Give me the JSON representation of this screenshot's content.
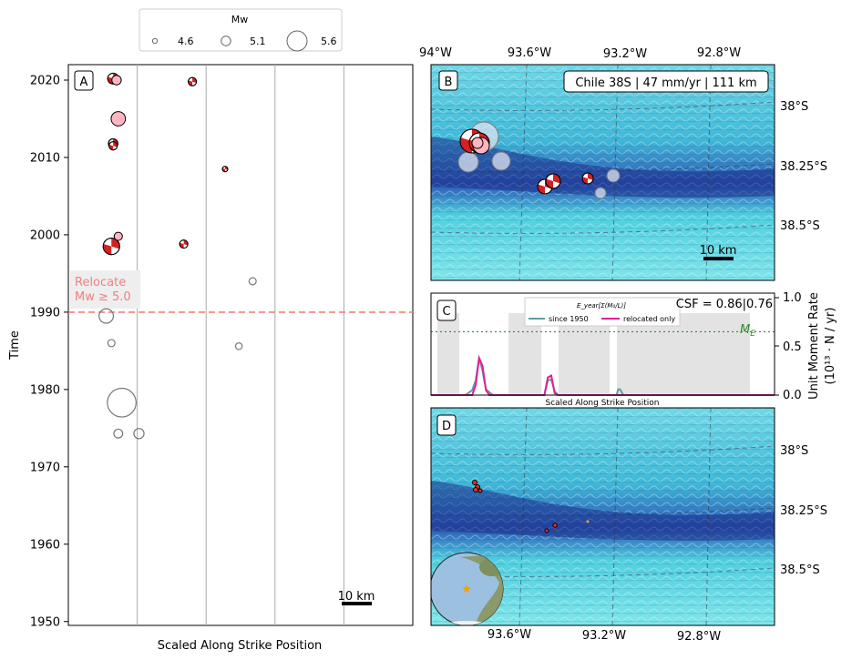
{
  "legend": {
    "title": "Mw",
    "entries": [
      "4.6",
      "5.1",
      "5.6"
    ]
  },
  "panels": {
    "A": "A",
    "B": "B",
    "C": "C",
    "D": "D"
  },
  "map_b": {
    "title_box": "Chile 38S | 47 mm/yr | 111 km",
    "lon_labels": [
      "94°W",
      "93.6°W",
      "93.2°W",
      "92.8°W"
    ],
    "lat_labels": [
      "38°S",
      "38.25°S",
      "38.5°S"
    ],
    "scalebar": "10 km"
  },
  "map_d": {
    "lon_labels": [
      "93.6°W",
      "93.2°W",
      "92.8°W"
    ],
    "lat_labels": [
      "38°S",
      "38.25°S",
      "38.5°S"
    ]
  },
  "panel_c": {
    "csf": "CSF = 0.86|0.76",
    "legend_title": "E_year[Σ(M₀/L)]",
    "series_since": "since 1950",
    "series_relocated": "relocated only",
    "me_label": "M_E",
    "xlabel": "Scaled Along Strike Position",
    "ylabel_line1": "Unit Moment Rate",
    "ylabel_line2": "(10¹³ · N / yr)",
    "yticks": [
      "0.0",
      "0.5",
      "1.0"
    ]
  },
  "panel_a": {
    "relocate_label_1": "Relocate",
    "relocate_label_2": "Mw ≥ 5.0",
    "scalebar": "10 km"
  },
  "chart_data": {
    "type": "scatter",
    "xlabel": "Scaled Along Strike Position",
    "ylabel": "Time",
    "ylim": [
      1949.5,
      2022
    ],
    "yticks": [
      "1950",
      "1960",
      "1970",
      "1980",
      "1990",
      "2000",
      "2010",
      "2020"
    ],
    "relocation_threshold_year": 1990,
    "events": [
      {
        "x": 0.13,
        "year": 2020.2,
        "mw": 5.2,
        "kind": "mech"
      },
      {
        "x": 0.14,
        "year": 2020.0,
        "mw": 5.1,
        "kind": "pink"
      },
      {
        "x": 0.145,
        "year": 2015.0,
        "mw": 5.4,
        "kind": "pink"
      },
      {
        "x": 0.13,
        "year": 2011.8,
        "mw": 5.1,
        "kind": "mech"
      },
      {
        "x": 0.13,
        "year": 2011.5,
        "mw": 5.0,
        "kind": "mech"
      },
      {
        "x": 0.36,
        "year": 2019.8,
        "mw": 5.0,
        "kind": "mech"
      },
      {
        "x": 0.455,
        "year": 2008.5,
        "mw": 4.7,
        "kind": "mech"
      },
      {
        "x": 0.125,
        "year": 1998.5,
        "mw": 5.5,
        "kind": "mech"
      },
      {
        "x": 0.145,
        "year": 1999.8,
        "mw": 5.0,
        "kind": "pink"
      },
      {
        "x": 0.335,
        "year": 1998.8,
        "mw": 5.0,
        "kind": "mech"
      },
      {
        "x": 0.535,
        "year": 1994.0,
        "mw": 4.9,
        "kind": "open"
      },
      {
        "x": 0.11,
        "year": 1989.5,
        "mw": 5.4,
        "kind": "open"
      },
      {
        "x": 0.125,
        "year": 1986.0,
        "mw": 4.9,
        "kind": "open"
      },
      {
        "x": 0.495,
        "year": 1985.6,
        "mw": 4.85,
        "kind": "open"
      },
      {
        "x": 0.155,
        "year": 1978.3,
        "mw": 5.9,
        "kind": "open"
      },
      {
        "x": 0.145,
        "year": 1974.3,
        "mw": 5.05,
        "kind": "open"
      },
      {
        "x": 0.205,
        "year": 1974.3,
        "mw": 5.15,
        "kind": "open"
      }
    ],
    "segment_lines_x": [
      0.2,
      0.4,
      0.6,
      0.8
    ],
    "unit_moment_rate": {
      "since_1950": [
        [
          0.0,
          0
        ],
        [
          0.1,
          0
        ],
        [
          0.12,
          0.05
        ],
        [
          0.13,
          0.15
        ],
        [
          0.14,
          0.38
        ],
        [
          0.15,
          0.25
        ],
        [
          0.16,
          0.06
        ],
        [
          0.18,
          0
        ],
        [
          0.33,
          0
        ],
        [
          0.34,
          0.15
        ],
        [
          0.35,
          0.16
        ],
        [
          0.36,
          0.04
        ],
        [
          0.37,
          0
        ],
        [
          0.54,
          0
        ],
        [
          0.545,
          0.06
        ],
        [
          0.55,
          0.06
        ],
        [
          0.56,
          0
        ],
        [
          1.0,
          0
        ]
      ],
      "relocated_only": [
        [
          0.0,
          0
        ],
        [
          0.12,
          0
        ],
        [
          0.13,
          0.1
        ],
        [
          0.14,
          0.38
        ],
        [
          0.15,
          0.3
        ],
        [
          0.16,
          0.05
        ],
        [
          0.17,
          0
        ],
        [
          0.33,
          0
        ],
        [
          0.34,
          0.18
        ],
        [
          0.35,
          0.2
        ],
        [
          0.36,
          0.02
        ],
        [
          0.37,
          0
        ],
        [
          1.0,
          0
        ]
      ],
      "ME": 0.65,
      "ylim": [
        0,
        1.0
      ]
    }
  }
}
